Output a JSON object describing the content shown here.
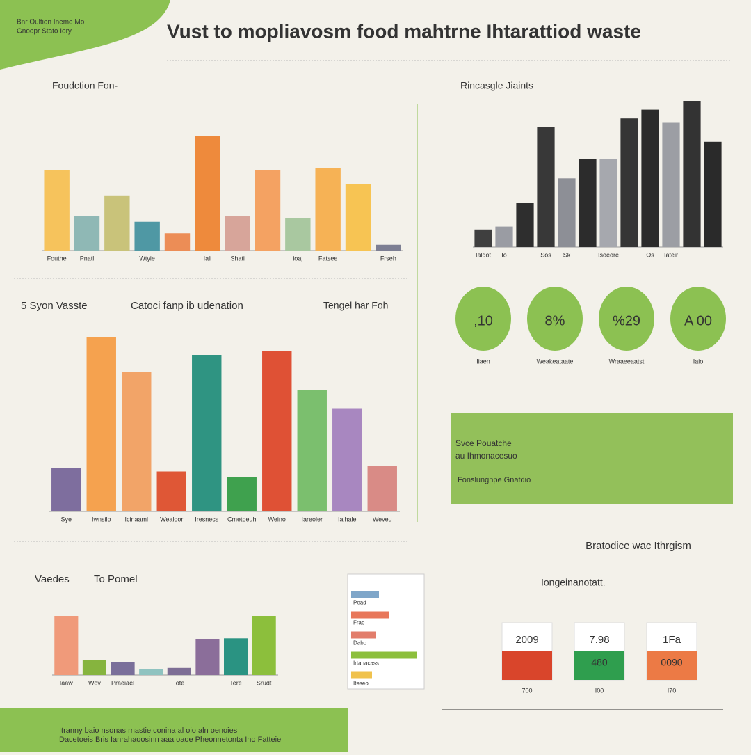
{
  "header": {
    "title": "Vust to mopliavosm food mahtrne Ihtarattiod waste",
    "badge": [
      "Bnr Oultion Ineme Mo",
      "Gnoopr Stato Iory"
    ]
  },
  "sections": [
    "5 Syon Vasste",
    "Catoci fanp ib udenation",
    "Tengel har Foh",
    "Vaedes",
    "To Pomel"
  ],
  "chart_data": [
    {
      "type": "bar",
      "title": "Foudction Fon-",
      "categories": [
        "Fouthe",
        "Pnatl",
        null,
        "Wtyie",
        null,
        "Iali",
        "Shati",
        null,
        "ioaj",
        "Fatsee",
        null,
        "Frseh"
      ],
      "values": [
        70,
        30,
        48,
        25,
        15,
        100,
        30,
        70,
        28,
        72,
        58,
        5
      ],
      "colors": [
        "#f6c35c",
        "#8fb8b5",
        "#c9c37a",
        "#4f98a4",
        "#ec8d56",
        "#ee8a3c",
        "#d7a59a",
        "#f4a262",
        "#a9c8a0",
        "#f6b255",
        "#f7c453",
        "#7d7f93"
      ],
      "ylim": [
        0,
        100
      ]
    },
    {
      "type": "bar",
      "title": "Rincasgle Jiaints",
      "categories": [
        "Ialdot",
        "Io",
        null,
        "Sos",
        "Sk",
        null,
        "Isoeore",
        null,
        "Os",
        "Iateir",
        null,
        null
      ],
      "values": [
        12,
        14,
        30,
        82,
        47,
        60,
        60,
        88,
        94,
        85,
        100,
        72
      ],
      "colors": [
        "#3f3f3f",
        "#9a9ca3",
        "#2e2e2e",
        "#383838",
        "#8d8f96",
        "#2c2c2c",
        "#a6a8ae",
        "#353535",
        "#2b2b2b",
        "#9c9ea4",
        "#333333",
        "#2a2a2a"
      ],
      "ylim": [
        0,
        100
      ]
    },
    {
      "type": "bar",
      "title": null,
      "categories": [
        "Sye",
        "Iwnsilo",
        "Icinaaml",
        "Wealoor",
        "Iresnecs",
        "Cmetoeuh",
        "Weino",
        "Iareoler",
        "Iaihale",
        "Weveu"
      ],
      "values": [
        25,
        100,
        80,
        23,
        90,
        20,
        92,
        70,
        59,
        26
      ],
      "colors": [
        "#7e6e9e",
        "#f5a24f",
        "#f2a468",
        "#df5736",
        "#2f9482",
        "#3fa14e",
        "#df5135",
        "#7bbf6e",
        "#a887c0",
        "#d98b86"
      ],
      "ylim": [
        0,
        100
      ]
    },
    {
      "type": "bar",
      "title": null,
      "categories": [
        "Iaaw",
        "Wov",
        "Praeiael",
        null,
        "Iote",
        null,
        "Tere",
        "Srudt"
      ],
      "values": [
        100,
        25,
        22,
        10,
        12,
        60,
        62,
        100
      ],
      "colors": [
        "#f09a7a",
        "#86b43e",
        "#7a6f9a",
        "#8fc3c0",
        "#7d6e95",
        "#8b6e9a",
        "#2a9382",
        "#8cbf3c"
      ],
      "ylim": [
        0,
        100
      ]
    },
    {
      "type": "hbar",
      "title": null,
      "categories": [
        "Pead",
        "Frao",
        "Dabo",
        "Irtanacass",
        "Iteseo"
      ],
      "values": [
        40,
        55,
        35,
        95,
        30
      ],
      "colors": [
        "#7fa6c9",
        "#e8775a",
        "#e27d6b",
        "#8cbf3c",
        "#f0c24d"
      ],
      "ylim": [
        0,
        100
      ]
    }
  ],
  "stats": [
    {
      "value": ",10",
      "label": "Iiaen"
    },
    {
      "value": "8%",
      "label": "Weakeataate"
    },
    {
      "value": "%29",
      "label": "Wraaeeaatst"
    },
    {
      "value": "A 00",
      "label": "Iaio"
    }
  ],
  "banner": {
    "lines": [
      "Svce Pouatche",
      "au Ihmonacesuo",
      "Fonslungnpe Gnatdio"
    ]
  },
  "cards": {
    "title": "Bratodice wac Ithrgism",
    "subtitle": "Iongeinanotatt.",
    "items": [
      {
        "head": "2009",
        "value": "",
        "foot": "700"
      },
      {
        "head": "7.98",
        "value": "480",
        "foot": "I00"
      },
      {
        "head": "1Fa",
        "value": "0090",
        "foot": "I70"
      }
    ]
  },
  "footer": {
    "lines": [
      "Itranny baio nsonas rnastie conina al oio aln oenoies",
      "Dacetoeis Bris Ianrahaoosinn aaa oaoe Pheonnetonta Ino Fatteie"
    ]
  }
}
